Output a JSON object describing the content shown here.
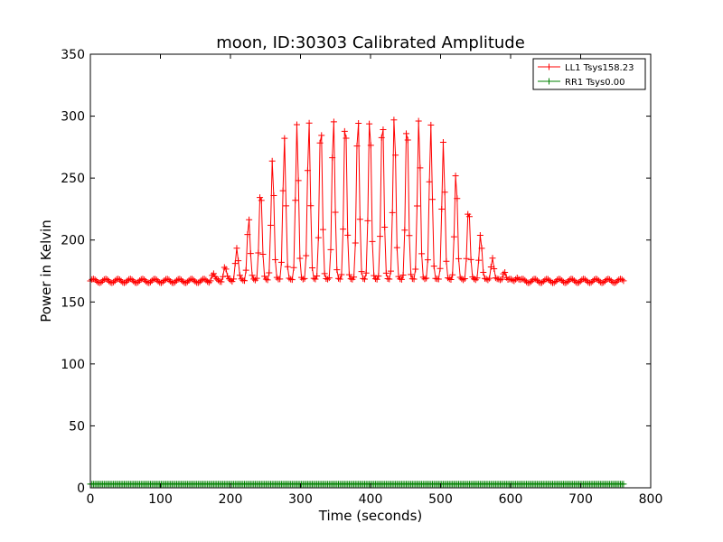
{
  "chart_data": {
    "type": "line",
    "title": "moon, ID:30303 Calibrated Amplitude",
    "xlabel": "Time (seconds)",
    "ylabel": "Power in Kelvin",
    "xlim": [
      0,
      800
    ],
    "ylim": [
      0,
      350
    ],
    "xticks": [
      0,
      100,
      200,
      300,
      400,
      500,
      600,
      700,
      800
    ],
    "yticks": [
      0,
      50,
      100,
      150,
      200,
      250,
      300,
      350
    ],
    "grid": false,
    "legend_position": "top-right",
    "series": [
      {
        "name": "LL1 Tsys158.23",
        "color": "#ff0000",
        "marker": "plus",
        "x_range": [
          0,
          762
        ],
        "baseline": 167,
        "oscillation_period_s": 17.5,
        "peaks": [
          {
            "x": 175,
            "y": 173
          },
          {
            "x": 192,
            "y": 179
          },
          {
            "x": 209,
            "y": 194
          },
          {
            "x": 226,
            "y": 219
          },
          {
            "x": 243,
            "y": 244
          },
          {
            "x": 260,
            "y": 267
          },
          {
            "x": 277,
            "y": 284
          },
          {
            "x": 295,
            "y": 295
          },
          {
            "x": 312,
            "y": 298
          },
          {
            "x": 329,
            "y": 300
          },
          {
            "x": 347,
            "y": 302
          },
          {
            "x": 364,
            "y": 304
          },
          {
            "x": 382,
            "y": 305
          },
          {
            "x": 399,
            "y": 305
          },
          {
            "x": 417,
            "y": 305
          },
          {
            "x": 434,
            "y": 304
          },
          {
            "x": 452,
            "y": 302
          },
          {
            "x": 469,
            "y": 300
          },
          {
            "x": 486,
            "y": 295
          },
          {
            "x": 504,
            "y": 281
          },
          {
            "x": 522,
            "y": 257
          },
          {
            "x": 540,
            "y": 229
          },
          {
            "x": 557,
            "y": 206
          },
          {
            "x": 574,
            "y": 187
          },
          {
            "x": 591,
            "y": 176
          },
          {
            "x": 609,
            "y": 171
          }
        ]
      },
      {
        "name": "RR1 Tsys0.00",
        "color": "#008000",
        "marker": "plus",
        "x_range": [
          0,
          762
        ],
        "baseline": 3
      }
    ]
  }
}
